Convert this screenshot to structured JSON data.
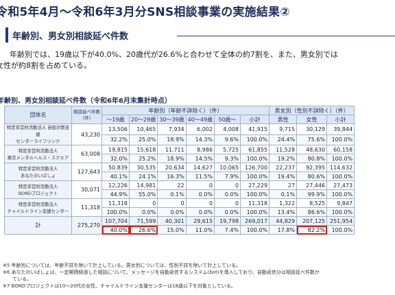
{
  "title": "令和5年4月～令和6年3月分SNS相談事業の実施結果②",
  "section_heading": "年齢別、男女別相談延べ件数",
  "lead_line1": "年齢別では、19歳以下が40.0%、20歳代が26.6%と合わせて全体の約7割を、また、男女別では",
  "lead_line2": "女性が約8割を占めている。",
  "table_title": "年齢別、男女別相談延べ件数（令和6年6月末集計時点）",
  "table": {
    "h_org": "団体名",
    "h_count": "相談延べ件数（件）",
    "h_age_group": "年齢別（年齢不詳除く）（件）",
    "h_sex_group": "男女別（性別不詳除く）（件）",
    "age_cols": [
      "～19歳",
      "20～29歳",
      "30～39歳",
      "40～49歳",
      "50歳～",
      "小計"
    ],
    "sex_cols": [
      "男性",
      "女性",
      "小計"
    ],
    "rows": [
      {
        "org_line1": "特定非営利活動法人 自殺対策支援",
        "org_line2": "センターライフリンク",
        "total": "43,230",
        "counts": [
          "13,506",
          "10,465",
          "7,934",
          "6,002",
          "4,008",
          "41,915",
          "9,715",
          "30,129",
          "39,844"
        ],
        "pcts": [
          "32.2%",
          "25.0%",
          "18.9%",
          "14.3%",
          "9.6%",
          "100.0%",
          "24.4%",
          "75.6%",
          "100.0%"
        ]
      },
      {
        "org_line1": "特定非営利活動法人",
        "org_line2": "東京メンタルヘルス・スクエア",
        "total": "63,008",
        "counts": [
          "19,815",
          "15,618",
          "11,711",
          "8,986",
          "5,725",
          "61,855",
          "11,528",
          "48,630",
          "60,158"
        ],
        "pcts": [
          "32.0%",
          "25.2%",
          "18.9%",
          "14.5%",
          "9.3%",
          "100.0%",
          "19.2%",
          "80.8%",
          "100.0%"
        ]
      },
      {
        "org_line1": "特定非営利活動法人",
        "org_line2": "あなたのいばしょ",
        "total": "127,643",
        "counts": [
          "50,839",
          "30,535",
          "20,634",
          "14,627",
          "10,065",
          "126,700",
          "22,237",
          "92,395",
          "114,632"
        ],
        "pcts": [
          "40.1%",
          "24.1%",
          "16.3%",
          "11.5%",
          "7.9%",
          "100.0%",
          "19.4%",
          "80.6%",
          "100.0%"
        ]
      },
      {
        "org_line1": "特定非営利活動法人",
        "org_line2": "BONDプロジェクト",
        "total": "30,071",
        "counts": [
          "12,226",
          "14,981",
          "22",
          "0",
          "0",
          "27,229",
          "27",
          "27,446",
          "27,473"
        ],
        "pcts": [
          "44.9%",
          "55.0%",
          "0.1%",
          "0.0%",
          "0.0%",
          "100.0%",
          "0.1%",
          "99.9%",
          "100.0%"
        ]
      },
      {
        "org_line1": "特定非営利活動法人",
        "org_line2": "チャイルドライン支援センター",
        "total": "11,318",
        "counts": [
          "11,318",
          "0",
          "0",
          "0",
          "0",
          "11,318",
          "1,322",
          "8,525",
          "9,847"
        ],
        "pcts": [
          "100.0%",
          "0.0%",
          "0.0%",
          "0.0%",
          "0.0%",
          "100.0%",
          "13.4%",
          "86.6%",
          "100.0%"
        ]
      }
    ],
    "total_row": {
      "label": "計",
      "total": "275,270",
      "counts": [
        "107,704",
        "71,599",
        "40,301",
        "29,615",
        "19,798",
        "269,017",
        "44,829",
        "207,125",
        "251,954"
      ],
      "pcts": [
        "40.0%",
        "26.6%",
        "15.0%",
        "11.0%",
        "7.4%",
        "100.0%",
        "17.8%",
        "82.2%",
        "100.0%"
      ]
    }
  },
  "notes": [
    "※5 年齢別については、年齢不詳を除いて計上している。男女別については、性別不詳を除いて計上している。",
    "※6 あなたのいばしょは、一定期間経過した相談について、メッセージを自動返信するシステム(bot)を導入しており、自動返信分は相談延べ件数か",
    "ている。",
    "※7 BONDプロジェクトは10～20代の女性、チャイルドライン支援センターは18歳以下を対象としている。"
  ],
  "highlight_color": "#d62020"
}
